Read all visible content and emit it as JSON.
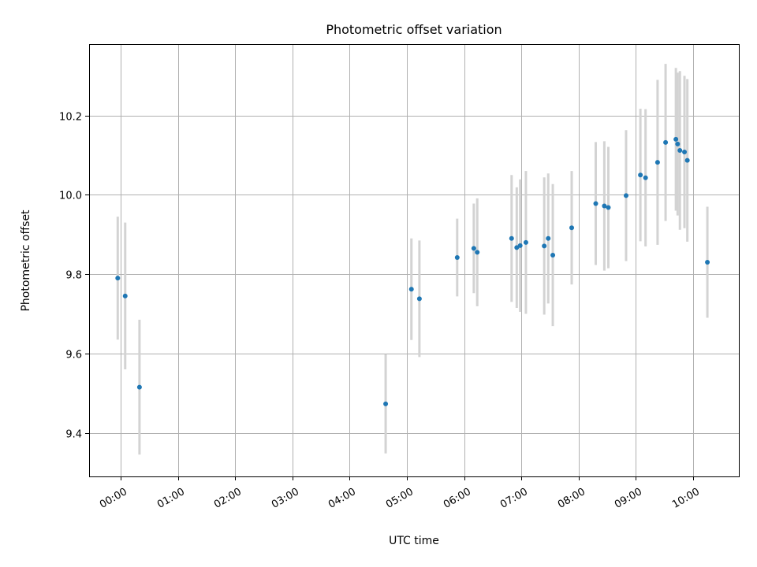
{
  "chart_data": {
    "type": "scatter",
    "title": "Photometric offset variation",
    "xlabel": "UTC time",
    "ylabel": "Photometric offset",
    "x_unit": "hours UTC",
    "xlim": [
      -0.55,
      10.8
    ],
    "ylim": [
      9.29,
      10.38
    ],
    "grid": true,
    "x_ticks": [
      {
        "value": 0,
        "label": "00:00"
      },
      {
        "value": 1,
        "label": "01:00"
      },
      {
        "value": 2,
        "label": "02:00"
      },
      {
        "value": 3,
        "label": "03:00"
      },
      {
        "value": 4,
        "label": "04:00"
      },
      {
        "value": 5,
        "label": "05:00"
      },
      {
        "value": 6,
        "label": "06:00"
      },
      {
        "value": 7,
        "label": "07:00"
      },
      {
        "value": 8,
        "label": "08:00"
      },
      {
        "value": 9,
        "label": "09:00"
      },
      {
        "value": 10,
        "label": "10:00"
      }
    ],
    "y_ticks": [
      {
        "value": 9.4,
        "label": "9.4"
      },
      {
        "value": 9.6,
        "label": "9.6"
      },
      {
        "value": 9.8,
        "label": "9.8"
      },
      {
        "value": 10.0,
        "label": "10.0"
      },
      {
        "value": 10.2,
        "label": "10.2"
      }
    ],
    "series": [
      {
        "name": "offset",
        "marker_color": "#1f77b4",
        "errorbar_color": "#d3d3d3",
        "points": [
          {
            "x": -0.05,
            "y": 9.79,
            "err": 0.155
          },
          {
            "x": 0.08,
            "y": 9.745,
            "err": 0.185
          },
          {
            "x": 0.33,
            "y": 9.515,
            "err": 0.17
          },
          {
            "x": 4.63,
            "y": 9.473,
            "err": 0.125
          },
          {
            "x": 5.08,
            "y": 9.762,
            "err": 0.128
          },
          {
            "x": 5.22,
            "y": 9.738,
            "err": 0.147
          },
          {
            "x": 5.88,
            "y": 9.842,
            "err": 0.098
          },
          {
            "x": 6.17,
            "y": 9.865,
            "err": 0.113
          },
          {
            "x": 6.23,
            "y": 9.855,
            "err": 0.136
          },
          {
            "x": 6.83,
            "y": 9.89,
            "err": 0.16
          },
          {
            "x": 6.92,
            "y": 9.867,
            "err": 0.152
          },
          {
            "x": 6.98,
            "y": 9.872,
            "err": 0.167
          },
          {
            "x": 7.08,
            "y": 9.88,
            "err": 0.18
          },
          {
            "x": 7.4,
            "y": 9.871,
            "err": 0.173
          },
          {
            "x": 7.47,
            "y": 9.89,
            "err": 0.164
          },
          {
            "x": 7.55,
            "y": 9.848,
            "err": 0.179
          },
          {
            "x": 7.88,
            "y": 9.917,
            "err": 0.143
          },
          {
            "x": 8.3,
            "y": 9.978,
            "err": 0.155
          },
          {
            "x": 8.45,
            "y": 9.972,
            "err": 0.163
          },
          {
            "x": 8.52,
            "y": 9.968,
            "err": 0.153
          },
          {
            "x": 8.83,
            "y": 9.998,
            "err": 0.165
          },
          {
            "x": 9.08,
            "y": 10.05,
            "err": 0.167
          },
          {
            "x": 9.17,
            "y": 10.043,
            "err": 0.173
          },
          {
            "x": 9.38,
            "y": 10.082,
            "err": 0.208
          },
          {
            "x": 9.52,
            "y": 10.132,
            "err": 0.198
          },
          {
            "x": 9.7,
            "y": 10.14,
            "err": 0.18
          },
          {
            "x": 9.73,
            "y": 10.128,
            "err": 0.18
          },
          {
            "x": 9.77,
            "y": 10.112,
            "err": 0.2
          },
          {
            "x": 9.85,
            "y": 10.108,
            "err": 0.192
          },
          {
            "x": 9.9,
            "y": 10.087,
            "err": 0.205
          },
          {
            "x": 10.25,
            "y": 9.83,
            "err": 0.14
          }
        ]
      }
    ]
  }
}
